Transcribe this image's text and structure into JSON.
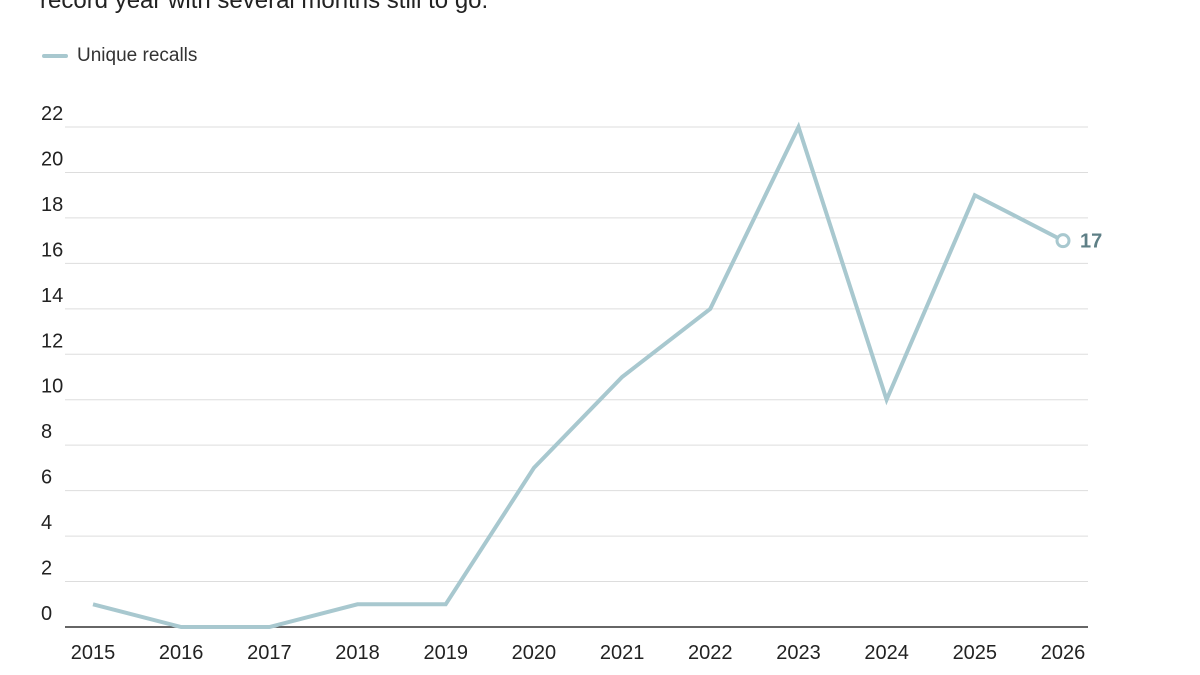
{
  "intro_text": "record year with several months still to go.",
  "legend": {
    "label": "Unique recalls",
    "color": "#a8c8cf"
  },
  "colors": {
    "line": "#a8c8cf",
    "end_label": "#5e7f86",
    "grid": "#dddddd",
    "axis": "#333333"
  },
  "chart_data": {
    "type": "line",
    "x": [
      "2015",
      "2016",
      "2017",
      "2018",
      "2019",
      "2020",
      "2021",
      "2022",
      "2023",
      "2024",
      "2025",
      "2026"
    ],
    "series": [
      {
        "name": "Unique recalls",
        "values": [
          1,
          0,
          0,
          1,
          1,
          7,
          11,
          14,
          22,
          10,
          19,
          17
        ]
      }
    ],
    "ylim": [
      0,
      22
    ],
    "yticks": [
      0,
      2,
      4,
      6,
      8,
      10,
      12,
      14,
      16,
      18,
      20,
      22
    ],
    "grid": true,
    "legend_position": "top-left",
    "end_label": "17",
    "end_marker": "open-circle"
  }
}
